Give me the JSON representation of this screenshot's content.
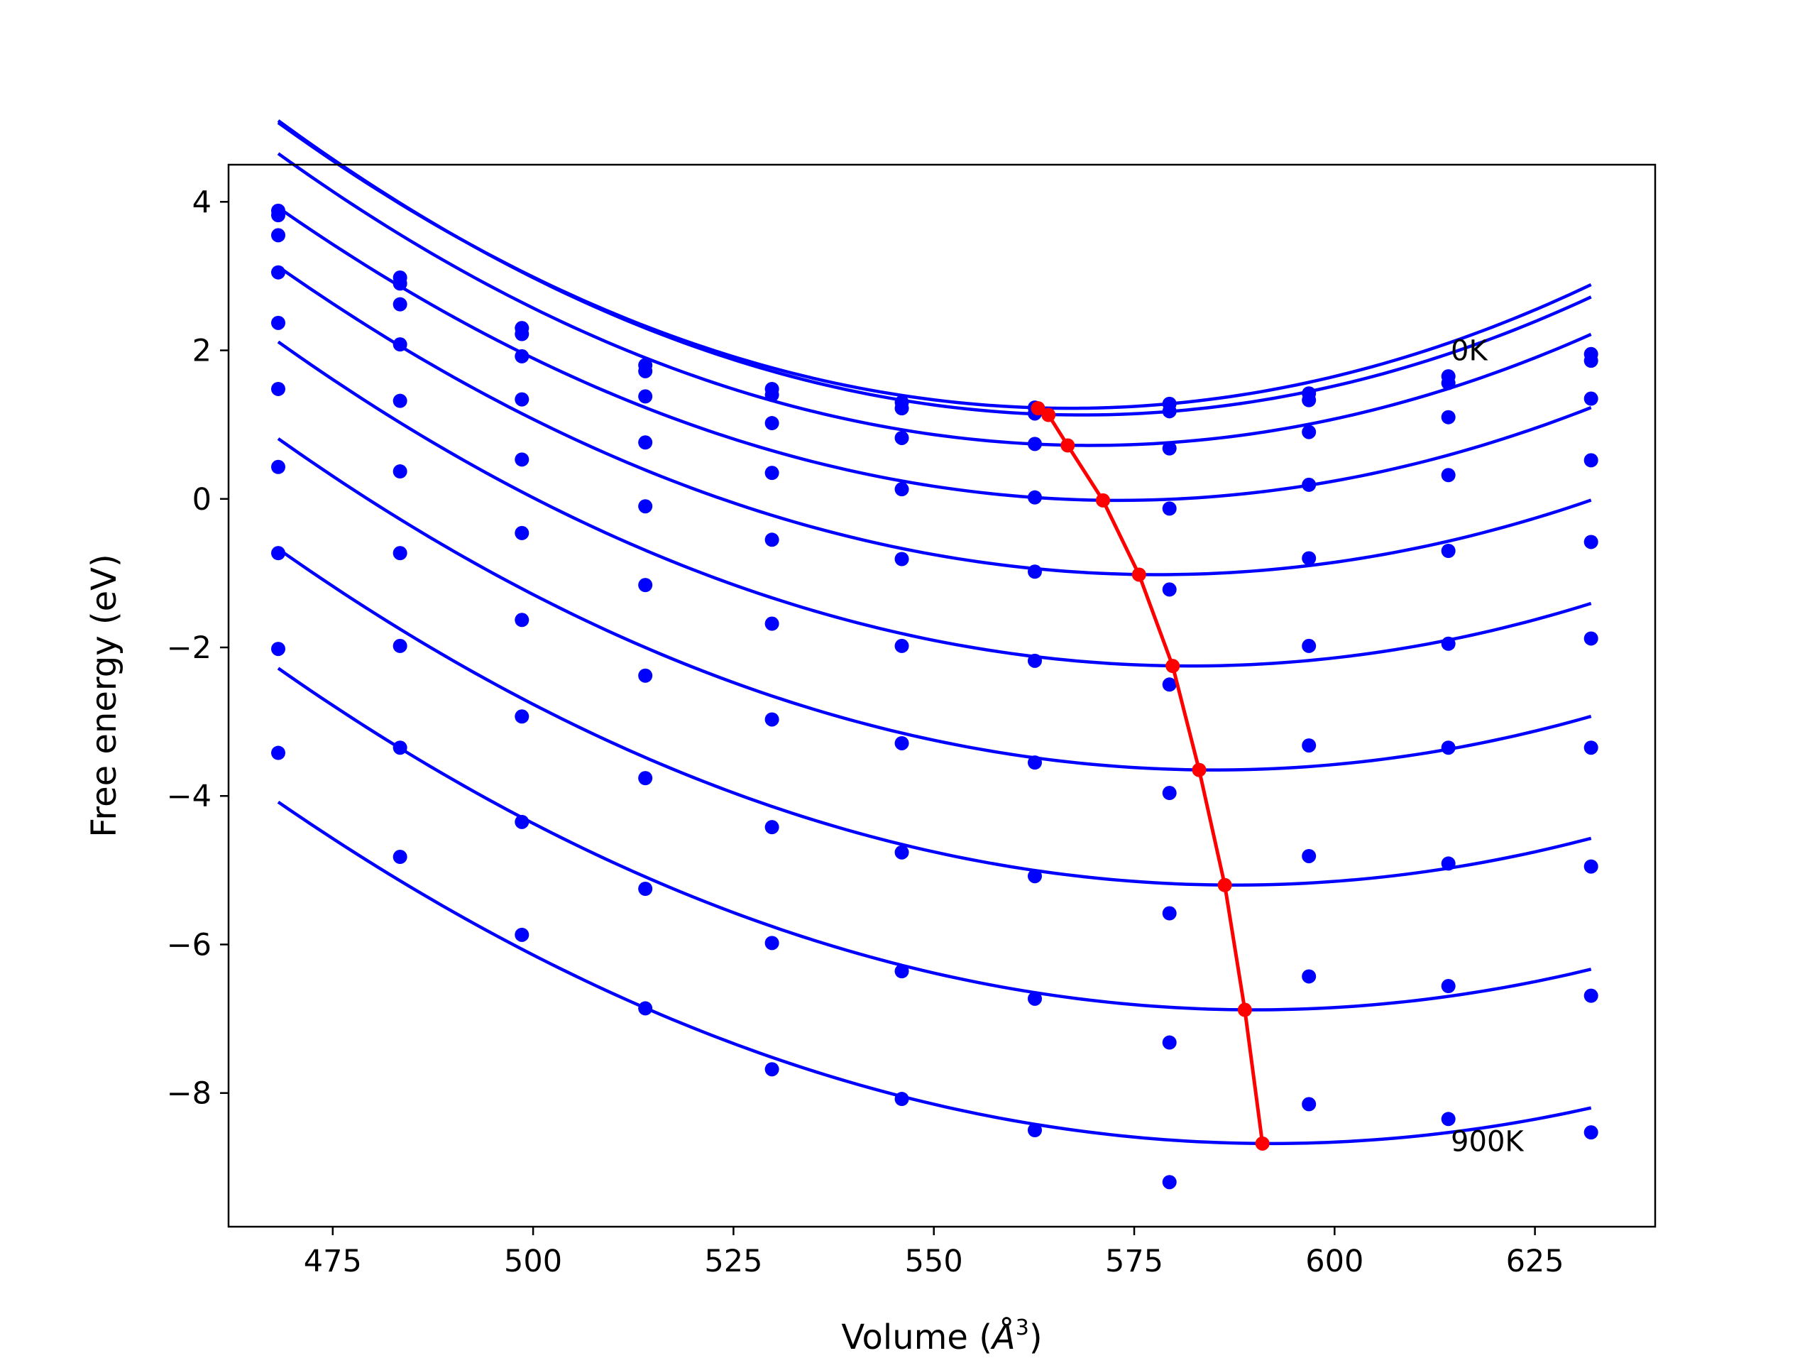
{
  "chart_data": {
    "type": "line",
    "title": "",
    "xlabel": "Volume (",
    "xlabel_symbol": "Å",
    "xlabel_exponent": "3",
    "xlabel_close": ")",
    "ylabel": "Free energy (eV)",
    "xlim": [
      462,
      640
    ],
    "ylim": [
      -9.8,
      4.5
    ],
    "xticks": [
      475,
      500,
      525,
      550,
      575,
      600,
      625
    ],
    "yticks": [
      4,
      2,
      0,
      -2,
      -4,
      -6,
      -8
    ],
    "ytick_labels": [
      "4",
      "2",
      "0",
      "−2",
      "−4",
      "−6",
      "−8"
    ],
    "grid": false,
    "legend": "none",
    "colors": {
      "series": "#0000ff",
      "minima": "#ff0000"
    },
    "x": [
      468.2,
      483.4,
      498.6,
      514.0,
      529.8,
      546.0,
      562.6,
      579.4,
      596.8,
      614.2,
      632.0
    ],
    "series": [
      {
        "values": [
          3.88,
          2.98,
          2.3,
          1.8,
          1.48,
          1.3,
          1.23,
          1.28,
          1.42,
          1.65,
          1.95
        ],
        "fit": {
          "a": 0.000394,
          "v0": 567.0,
          "emin": 1.22
        }
      },
      {
        "values": [
          3.82,
          2.9,
          2.22,
          1.72,
          1.4,
          1.22,
          1.15,
          1.18,
          1.33,
          1.56,
          1.86
        ],
        "fit": {
          "a": 0.000394,
          "v0": 568.5,
          "emin": 1.13
        }
      },
      {
        "values": [
          3.55,
          2.62,
          1.92,
          1.38,
          1.02,
          0.82,
          0.74,
          0.68,
          0.9,
          1.1,
          1.35
        ],
        "fit": {
          "a": 0.000383,
          "v0": 569.5,
          "emin": 0.72
        }
      },
      {
        "values": [
          3.05,
          2.08,
          1.34,
          0.76,
          0.35,
          0.13,
          0.02,
          -0.13,
          0.19,
          0.32,
          0.52
        ],
        "fit": {
          "a": 0.000359,
          "v0": 573.0,
          "emin": -0.02
        }
      },
      {
        "values": [
          2.37,
          1.32,
          0.53,
          -0.1,
          -0.55,
          -0.81,
          -0.98,
          -1.22,
          -0.8,
          -0.7,
          -0.58
        ],
        "fit": {
          "a": 0.000344,
          "v0": 578.0,
          "emin": -1.02
        }
      },
      {
        "values": [
          1.48,
          0.37,
          -0.46,
          -1.16,
          -1.68,
          -1.98,
          -2.18,
          -2.5,
          -1.98,
          -1.95,
          -1.88
        ],
        "fit": {
          "a": 0.000337,
          "v0": 582.0,
          "emin": -2.25
        }
      },
      {
        "values": [
          0.43,
          -0.73,
          -1.63,
          -2.38,
          -2.97,
          -3.29,
          -3.55,
          -3.96,
          -3.32,
          -3.35,
          -3.35
        ],
        "fit": {
          "a": 0.000327,
          "v0": 585.0,
          "emin": -3.65
        }
      },
      {
        "values": [
          -0.73,
          -1.98,
          -2.93,
          -3.76,
          -4.42,
          -4.76,
          -5.08,
          -5.58,
          -4.81,
          -4.91,
          -4.95
        ],
        "fit": {
          "a": 0.000318,
          "v0": 587.5,
          "emin": -5.2
        }
      },
      {
        "values": [
          -2.02,
          -3.35,
          -4.35,
          -5.25,
          -5.98,
          -6.36,
          -6.73,
          -7.32,
          -6.43,
          -6.56,
          -6.69
        ],
        "fit": {
          "a": 0.00031,
          "v0": 590.0,
          "emin": -6.88
        }
      },
      {
        "values": [
          -3.42,
          -4.82,
          -5.87,
          -6.86,
          -7.68,
          -8.08,
          -8.5,
          -9.2,
          -8.15,
          -8.35,
          -8.53
        ],
        "fit": {
          "a": 0.0003,
          "v0": 592.0,
          "emin": -8.68
        }
      }
    ],
    "minima": {
      "x": [
        563.0,
        564.3,
        566.7,
        571.1,
        575.6,
        579.8,
        583.1,
        586.3,
        588.8,
        591.0
      ],
      "y": [
        1.22,
        1.13,
        0.72,
        -0.02,
        -1.02,
        -2.25,
        -3.65,
        -5.2,
        -6.88,
        -8.68
      ]
    },
    "annotations": [
      {
        "text": "0K",
        "x": 614.5,
        "y": 2.0
      },
      {
        "text": "900K",
        "x": 614.5,
        "y": -8.65
      }
    ]
  }
}
